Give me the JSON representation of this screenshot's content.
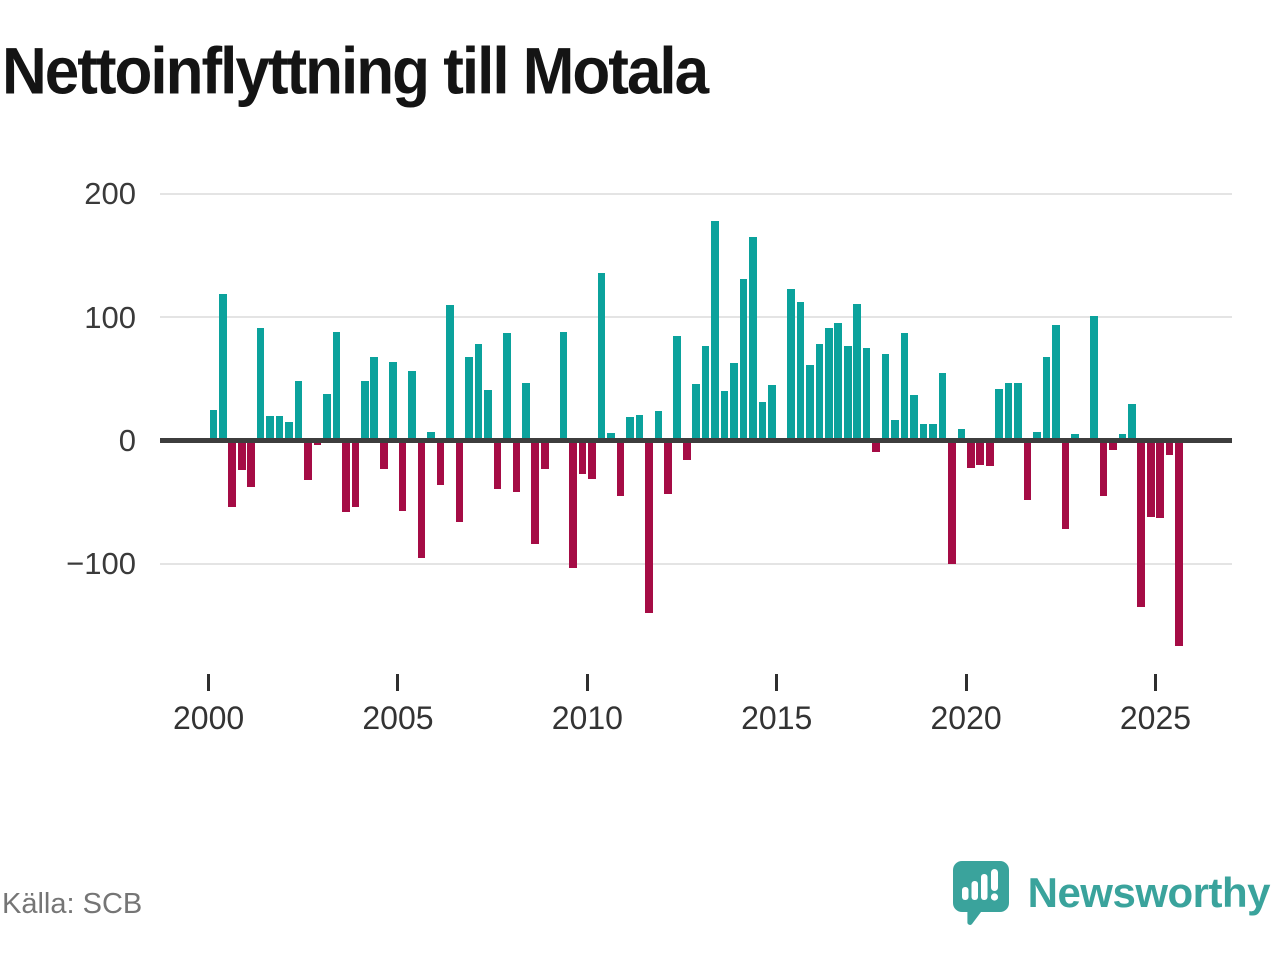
{
  "title": "Nettoinflyttning till Motala",
  "source": "Källa: SCB",
  "brand": {
    "name": "Newsworthy",
    "color": "#3aa39c"
  },
  "colors": {
    "positive_bar": "#0ba29c",
    "negative_bar": "#a50c45",
    "zero_line": "#3d3d3d",
    "gridline": "#e4e4e4",
    "axis_text": "#3a3a3a"
  },
  "chart_data": {
    "type": "bar",
    "title": "Nettoinflyttning till Motala",
    "xlabel": "",
    "ylabel": "",
    "frequency": "quarterly",
    "start_quarter": "2000Q1",
    "end_quarter": "2025Q3",
    "y_ticks": [
      200,
      100,
      0,
      -100
    ],
    "y_tick_labels": [
      "200",
      "100",
      "0",
      "−100"
    ],
    "x_tick_labels": [
      "2000",
      "2005",
      "2010",
      "2015",
      "2020",
      "2025"
    ],
    "ylim": [
      -200,
      220
    ],
    "grid": "horizontal",
    "legend": "none",
    "quarters": [
      "2000Q1",
      "2000Q2",
      "2000Q3",
      "2000Q4",
      "2001Q1",
      "2001Q2",
      "2001Q3",
      "2001Q4",
      "2002Q1",
      "2002Q2",
      "2002Q3",
      "2002Q4",
      "2003Q1",
      "2003Q2",
      "2003Q3",
      "2003Q4",
      "2004Q1",
      "2004Q2",
      "2004Q3",
      "2004Q4",
      "2005Q1",
      "2005Q2",
      "2005Q3",
      "2005Q4",
      "2006Q1",
      "2006Q2",
      "2006Q3",
      "2006Q4",
      "2007Q1",
      "2007Q2",
      "2007Q3",
      "2007Q4",
      "2008Q1",
      "2008Q2",
      "2008Q3",
      "2008Q4",
      "2009Q1",
      "2009Q2",
      "2009Q3",
      "2009Q4",
      "2010Q1",
      "2010Q2",
      "2010Q3",
      "2010Q4",
      "2011Q1",
      "2011Q2",
      "2011Q3",
      "2011Q4",
      "2012Q1",
      "2012Q2",
      "2012Q3",
      "2012Q4",
      "2013Q1",
      "2013Q2",
      "2013Q3",
      "2013Q4",
      "2014Q1",
      "2014Q2",
      "2014Q3",
      "2014Q4",
      "2015Q1",
      "2015Q2",
      "2015Q3",
      "2015Q4",
      "2016Q1",
      "2016Q2",
      "2016Q3",
      "2016Q4",
      "2017Q1",
      "2017Q2",
      "2017Q3",
      "2017Q4",
      "2018Q1",
      "2018Q2",
      "2018Q3",
      "2018Q4",
      "2019Q1",
      "2019Q2",
      "2019Q3",
      "2019Q4",
      "2020Q1",
      "2020Q2",
      "2020Q3",
      "2020Q4",
      "2021Q1",
      "2021Q2",
      "2021Q3",
      "2021Q4",
      "2022Q1",
      "2022Q2",
      "2022Q3",
      "2022Q4",
      "2023Q1",
      "2023Q2",
      "2023Q3",
      "2023Q4",
      "2024Q1",
      "2024Q2",
      "2024Q3",
      "2024Q4",
      "2025Q1",
      "2025Q2",
      "2025Q3"
    ],
    "values": [
      25,
      119,
      -54,
      -24,
      -38,
      91,
      20,
      20,
      15,
      48,
      -32,
      -4,
      38,
      88,
      -58,
      -54,
      48,
      68,
      -23,
      64,
      -57,
      56,
      -95,
      7,
      -36,
      110,
      -66,
      68,
      78,
      41,
      -39,
      87,
      -42,
      47,
      -84,
      -23,
      0,
      88,
      -103,
      -27,
      -31,
      136,
      6,
      -45,
      19,
      21,
      -140,
      24,
      -43,
      85,
      -16,
      46,
      77,
      178,
      40,
      63,
      131,
      165,
      31,
      45,
      0,
      123,
      112,
      61,
      78,
      91,
      95,
      77,
      111,
      75,
      -9,
      70,
      17,
      87,
      37,
      13,
      13,
      55,
      -100,
      9,
      -22,
      -20,
      -21,
      42,
      47,
      47,
      -48,
      7,
      68,
      94,
      -72,
      5,
      0,
      101,
      -45,
      -8,
      5,
      30,
      -135,
      -62,
      -63,
      -12,
      -167
    ]
  }
}
